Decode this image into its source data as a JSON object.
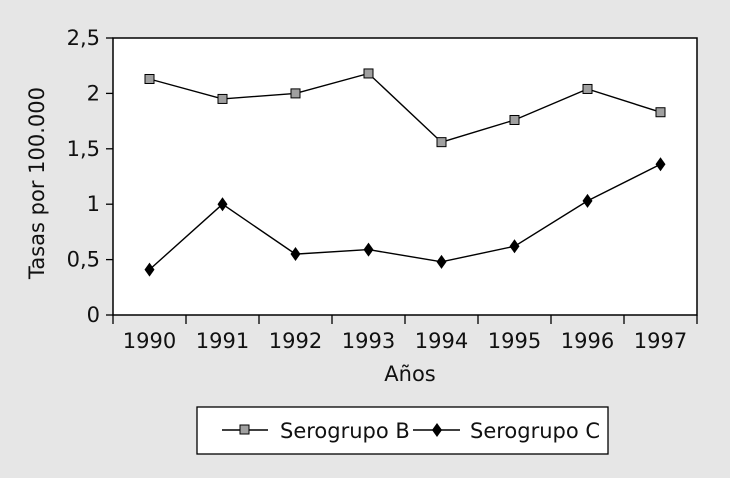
{
  "chart_data": {
    "type": "line",
    "title": "",
    "xlabel": "Años",
    "ylabel": "Tasas por 100.000",
    "categories": [
      "1990",
      "1991",
      "1992",
      "1993",
      "1994",
      "1995",
      "1996",
      "1997"
    ],
    "ylim": [
      0,
      2.5
    ],
    "yticks": [
      "0",
      "0,5",
      "1",
      "1,5",
      "2",
      "2,5"
    ],
    "grid": false,
    "legend_position": "bottom",
    "series": [
      {
        "name": "Serogrupo B",
        "marker": "square",
        "values": [
          2.13,
          1.95,
          2.0,
          2.18,
          1.56,
          1.76,
          2.04,
          1.83
        ],
        "line_color": "#000000",
        "marker_color": "#a0a0a0"
      },
      {
        "name": "Serogrupo C",
        "marker": "diamond",
        "values": [
          0.41,
          1.0,
          0.55,
          0.59,
          0.48,
          0.62,
          1.03,
          1.36
        ],
        "line_color": "#000000",
        "marker_color": "#000000"
      }
    ]
  }
}
